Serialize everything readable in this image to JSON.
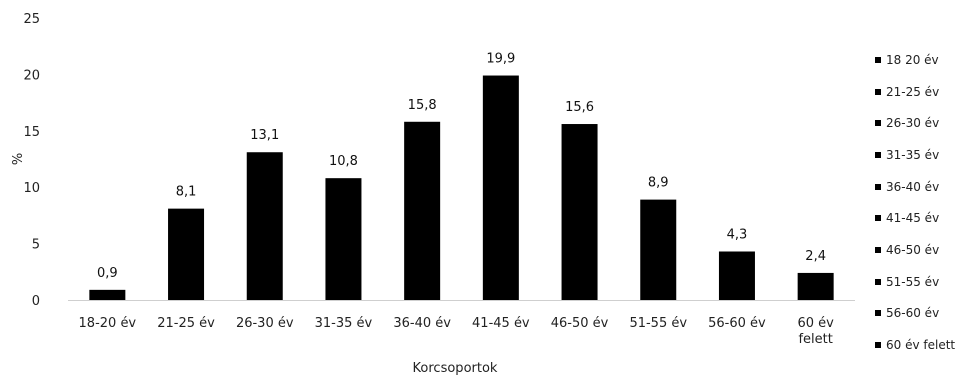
{
  "chart_data": {
    "type": "bar",
    "title": "",
    "xlabel": "Korcsoportok",
    "ylabel": "%",
    "ylim": [
      0,
      25
    ],
    "yticks": [
      "0",
      "5",
      "10",
      "15",
      "20",
      "25"
    ],
    "categories": [
      "18-20 év",
      "21-25 év",
      "26-30 év",
      "31-35 év",
      "36-40 év",
      "41-45 év",
      "46-50 év",
      "51-55 év",
      "56-60 év",
      "60 év felett"
    ],
    "values": [
      0.9,
      8.1,
      13.1,
      10.8,
      15.8,
      19.9,
      15.6,
      8.9,
      4.3,
      2.4
    ],
    "value_labels": [
      "0,9",
      "8,1",
      "13,1",
      "10,8",
      "15,8",
      "19,9",
      "15,6",
      "8,9",
      "4,3",
      "2,4"
    ],
    "bar_color": "#000000",
    "grid": false,
    "legend": {
      "placement": "right",
      "entries": [
        "18 20 év",
        "21-25 év",
        "26-30 év",
        "31-35 év",
        "36-40 év",
        "41-45 év",
        "46-50 év",
        "51-55 év",
        "56-60 év",
        "60 év felett"
      ]
    }
  }
}
